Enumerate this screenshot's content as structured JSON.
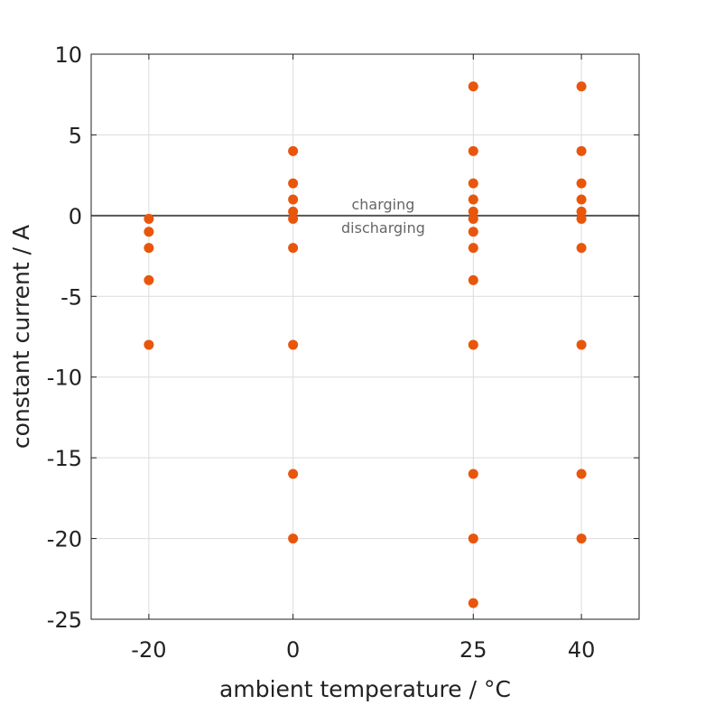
{
  "chart_data": {
    "type": "scatter",
    "title": "",
    "xlabel": "ambient temperature / °C",
    "ylabel": "constant current / A",
    "xlim": [
      -28,
      48
    ],
    "ylim": [
      -25,
      10
    ],
    "x_ticks": [
      -20,
      0,
      25,
      40
    ],
    "y_ticks": [
      10,
      5,
      0,
      -5,
      -10,
      -15,
      -20,
      -25
    ],
    "grid": true,
    "marker_color": "#e8560c",
    "annotations": {
      "above": "charging",
      "below": "discharging"
    },
    "series": [
      {
        "points": [
          [
            -20,
            -0.2
          ],
          [
            -20,
            -1
          ],
          [
            -20,
            -2
          ],
          [
            -20,
            -4
          ],
          [
            -20,
            -8
          ],
          [
            0,
            4
          ],
          [
            0,
            2
          ],
          [
            0,
            1
          ],
          [
            0,
            0.25
          ],
          [
            0,
            -0.2
          ],
          [
            0,
            -2
          ],
          [
            0,
            -8
          ],
          [
            0,
            -16
          ],
          [
            0,
            -20
          ],
          [
            25,
            8
          ],
          [
            25,
            4
          ],
          [
            25,
            2
          ],
          [
            25,
            1
          ],
          [
            25,
            0.25
          ],
          [
            25,
            -0.2
          ],
          [
            25,
            -1
          ],
          [
            25,
            -2
          ],
          [
            25,
            -4
          ],
          [
            25,
            -8
          ],
          [
            25,
            -16
          ],
          [
            25,
            -20
          ],
          [
            25,
            -24
          ],
          [
            40,
            8
          ],
          [
            40,
            4
          ],
          [
            40,
            2
          ],
          [
            40,
            1
          ],
          [
            40,
            0.25
          ],
          [
            40,
            -0.2
          ],
          [
            40,
            -2
          ],
          [
            40,
            -8
          ],
          [
            40,
            -16
          ],
          [
            40,
            -20
          ]
        ]
      }
    ]
  }
}
